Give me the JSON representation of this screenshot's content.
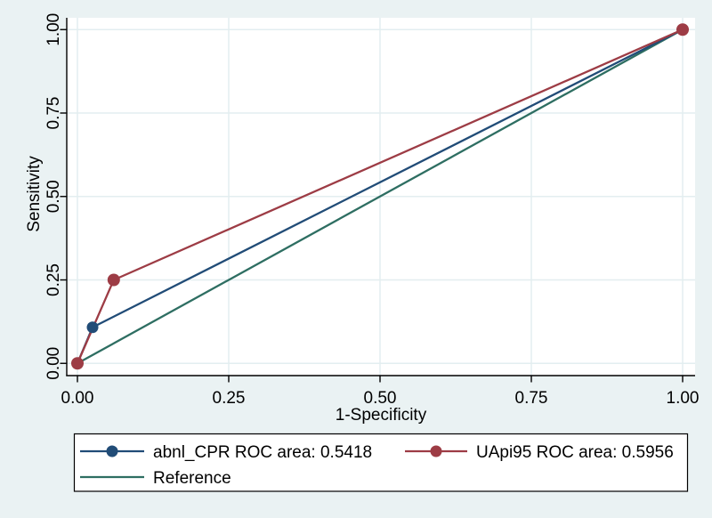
{
  "chart_data": {
    "type": "line",
    "subtype": "roc-comparison",
    "title": "",
    "xlabel": "1-Specificity",
    "ylabel": "Sensitivity",
    "xlim": [
      0,
      1
    ],
    "ylim": [
      0,
      1
    ],
    "grid": "both",
    "legend_position": "bottom",
    "xticks": {
      "values": [
        0,
        0.25,
        0.5,
        0.75,
        1
      ],
      "labels": [
        "0.00",
        "0.25",
        "0.50",
        "0.75",
        "1.00"
      ]
    },
    "yticks": {
      "values": [
        0,
        0.25,
        0.5,
        0.75,
        1
      ],
      "labels": [
        "0.00",
        "0.25",
        "0.50",
        "0.75",
        "1.00"
      ]
    },
    "series": [
      {
        "name": "abnl_CPR ROC area: 0.5418",
        "color": "#214c77",
        "marker": true,
        "marker_radius": 6.5,
        "points": [
          [
            0,
            0
          ],
          [
            0.025,
            0.108
          ],
          [
            1,
            1
          ]
        ]
      },
      {
        "name": "UApi95 ROC area: 0.5956",
        "color": "#9d3c45",
        "marker": true,
        "marker_radius": 7,
        "points": [
          [
            0,
            0
          ],
          [
            0.06,
            0.25
          ],
          [
            1,
            1
          ]
        ]
      },
      {
        "name": "Reference",
        "color": "#2e6e62",
        "marker": false,
        "marker_radius": 0,
        "points": [
          [
            0,
            0
          ],
          [
            1,
            1
          ]
        ]
      }
    ],
    "colors": {
      "background": "#eaf2f3",
      "plot_background": "#ffffff",
      "grid": "#e3eef0",
      "axis": "#000000",
      "text": "#000000",
      "legend_background": "#ffffff",
      "legend_border": "#000000"
    }
  }
}
